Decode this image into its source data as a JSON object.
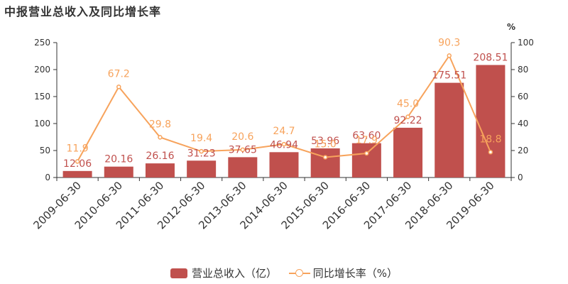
{
  "title": "中报营业总收入及同比增长率",
  "right_axis_unit": "%",
  "legend": {
    "bar_label": "营业总收入（亿）",
    "line_label": "同比增长率（%）"
  },
  "colors": {
    "bar": "#c0504d",
    "line": "#f7a35c",
    "axis": "#333333"
  },
  "chart_data": {
    "type": "bar",
    "categories": [
      "2009-06-30",
      "2010-06-30",
      "2011-06-30",
      "2012-06-30",
      "2013-06-30",
      "2014-06-30",
      "2015-06-30",
      "2016-06-30",
      "2017-06-30",
      "2018-06-30",
      "2019-06-30"
    ],
    "series": [
      {
        "name": "营业总收入（亿）",
        "type": "bar",
        "values": [
          12.06,
          20.16,
          26.16,
          31.23,
          37.65,
          46.94,
          53.96,
          63.6,
          92.22,
          175.51,
          208.51
        ],
        "labels": [
          "12.06",
          "20.16",
          "26.16",
          "31.23",
          "37.65",
          "46.94",
          "53.96",
          "63.60",
          "92.22",
          "175.51",
          "208.51"
        ]
      },
      {
        "name": "同比增长率（%）",
        "type": "line",
        "axis": "right",
        "values": [
          11.9,
          67.2,
          29.8,
          19.4,
          20.6,
          24.7,
          15.0,
          17.9,
          45.0,
          90.3,
          18.8
        ],
        "labels": [
          "11.9",
          "67.2",
          "29.8",
          "19.4",
          "20.6",
          "24.7",
          "15.0",
          "17.9",
          "45.0",
          "90.3",
          "18.8"
        ]
      }
    ],
    "ylim": [
      0,
      250
    ],
    "y_ticks": [
      "0",
      "50",
      "100",
      "150",
      "200",
      "250"
    ],
    "y2lim": [
      0,
      100
    ],
    "y2_ticks": [
      "0",
      "20",
      "40",
      "60",
      "80",
      "100"
    ],
    "legend_position": "bottom"
  }
}
